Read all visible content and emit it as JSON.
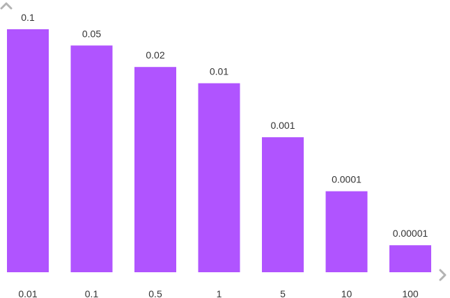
{
  "chart_data": {
    "type": "bar",
    "categories": [
      "0.01",
      "0.1",
      "0.5",
      "1",
      "5",
      "10",
      "100"
    ],
    "values": [
      0.1,
      0.05,
      0.02,
      0.01,
      0.001,
      0.0001,
      1e-05
    ],
    "data_labels": [
      "0.1",
      "0.05",
      "0.02",
      "0.01",
      "0.001",
      "0.0001",
      "0.00001"
    ],
    "title": "",
    "xlabel": "",
    "ylabel": "",
    "bar_color": "#b054ff",
    "axis_arrow_color": "#b3b3b3",
    "grid": false,
    "legend": "none",
    "y_axis_visible": false
  }
}
